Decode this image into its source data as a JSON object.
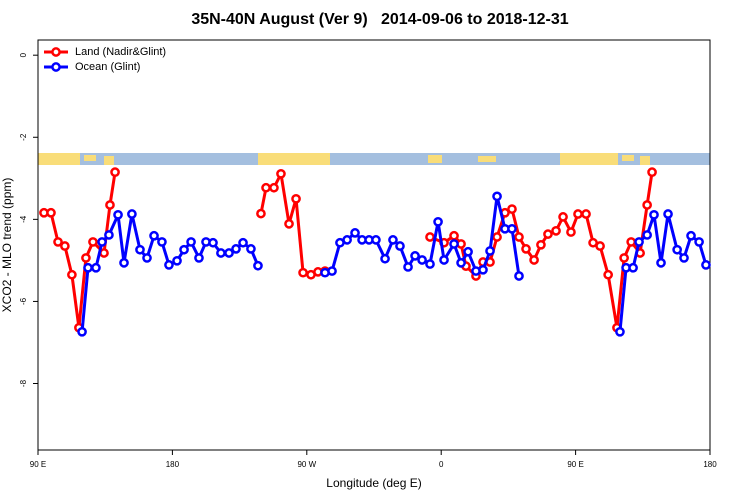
{
  "chart_data": {
    "type": "line",
    "title": "35N-40N August (Ver 9)   2014-09-06 to 2018-12-31",
    "x_label": "Longitude (deg E)",
    "y_label": "XCO2 - MLO trend (ppm)",
    "xlim": [
      90,
      540
    ],
    "ylim": [
      -9.62,
      0.37
    ],
    "xticks": [
      {
        "value": 90,
        "label": "90 E"
      },
      180,
      {
        "value": 270,
        "label": "90 W"
      },
      {
        "value": 360,
        "label": "0"
      },
      {
        "value": 450,
        "label": "90 E"
      },
      {
        "value": 540,
        "label": "180"
      }
    ],
    "yticks": [
      0,
      -2,
      -4,
      -6,
      -8
    ],
    "legend": "topleft",
    "series": [
      {
        "name": "Land (Nadir&Glint)",
        "color": "#ff0000",
        "x": [
          94.0,
          98.7,
          103.4,
          108.0,
          112.7,
          117.4,
          122.1,
          126.8,
          134.2,
          138.2,
          141.6,
          null,
          239.3,
          242.7,
          248.0,
          252.7,
          258.1,
          262.8,
          267.5,
          272.8,
          277.5,
          282.2,
          null,
          352.5,
          361.9,
          368.6,
          373.3,
          376.6,
          383.3,
          388.0,
          392.7,
          397.4,
          402.7,
          407.4,
          412.1,
          416.8,
          422.2,
          426.8,
          431.5,
          436.9,
          441.6,
          446.9,
          451.6,
          457.0,
          461.7,
          466.4,
          471.8,
          477.7,
          482.5,
          487.2,
          493.2,
          497.9,
          501.2
        ],
        "values": [
          -3.84,
          -3.84,
          -4.55,
          -4.65,
          -5.35,
          -6.64,
          -4.94,
          -4.55,
          -4.82,
          -3.65,
          -2.85,
          null,
          -3.86,
          -3.23,
          -3.23,
          -2.89,
          -4.11,
          -3.5,
          -5.3,
          -5.35,
          -5.28,
          -5.26,
          null,
          -4.43,
          -4.57,
          -4.4,
          -4.6,
          -5.14,
          -5.38,
          -5.04,
          -5.04,
          -4.43,
          -3.84,
          -3.75,
          -4.43,
          -4.72,
          -4.99,
          -4.62,
          -4.36,
          -4.28,
          -3.94,
          -4.31,
          -3.87,
          -3.87,
          -4.57,
          -4.65,
          -5.35,
          -6.64,
          -4.94,
          -4.55,
          -4.82,
          -3.65,
          -2.85
        ]
      },
      {
        "name": "Ocean (Glint)",
        "color": "#0000ff",
        "x": [
          119.5,
          123.5,
          128.8,
          132.9,
          137.5,
          143.6,
          147.6,
          152.9,
          158.3,
          163.0,
          167.7,
          173.0,
          177.7,
          183.1,
          187.8,
          192.5,
          197.8,
          202.5,
          207.2,
          212.5,
          217.9,
          222.6,
          227.3,
          232.6,
          237.3,
          null,
          282.2,
          286.9,
          292.2,
          297.0,
          302.3,
          307.0,
          311.7,
          316.3,
          322.4,
          327.7,
          332.4,
          337.8,
          342.5,
          347.2,
          352.5,
          357.9,
          361.9,
          368.6,
          373.3,
          378.0,
          383.3,
          388.0,
          392.7,
          397.4,
          402.7,
          407.4,
          412.1,
          null,
          479.7,
          483.8,
          488.5,
          492.5,
          497.9,
          502.5,
          507.2,
          511.9,
          518.0,
          522.6,
          527.3,
          532.7,
          537.3
        ],
        "values": [
          -6.74,
          -5.18,
          -5.18,
          -4.55,
          -4.38,
          -3.89,
          -5.06,
          -3.87,
          -4.74,
          -4.94,
          -4.4,
          -4.55,
          -5.11,
          -5.01,
          -4.74,
          -4.55,
          -4.94,
          -4.55,
          -4.57,
          -4.82,
          -4.82,
          -4.72,
          -4.57,
          -4.72,
          -5.13,
          null,
          -5.3,
          -5.26,
          -4.57,
          -4.5,
          -4.33,
          -4.5,
          -4.5,
          -4.5,
          -4.96,
          -4.5,
          -4.65,
          -5.16,
          -4.89,
          -4.99,
          -5.09,
          -4.06,
          -4.99,
          -4.6,
          -5.06,
          -4.79,
          -5.26,
          -5.23,
          -4.77,
          -3.44,
          -4.23,
          -4.23,
          -5.38,
          null,
          -6.74,
          -5.18,
          -5.18,
          -4.55,
          -4.38,
          -3.89,
          -5.06,
          -3.87,
          -4.74,
          -4.94,
          -4.4,
          -4.55,
          -5.11
        ]
      }
    ]
  }
}
